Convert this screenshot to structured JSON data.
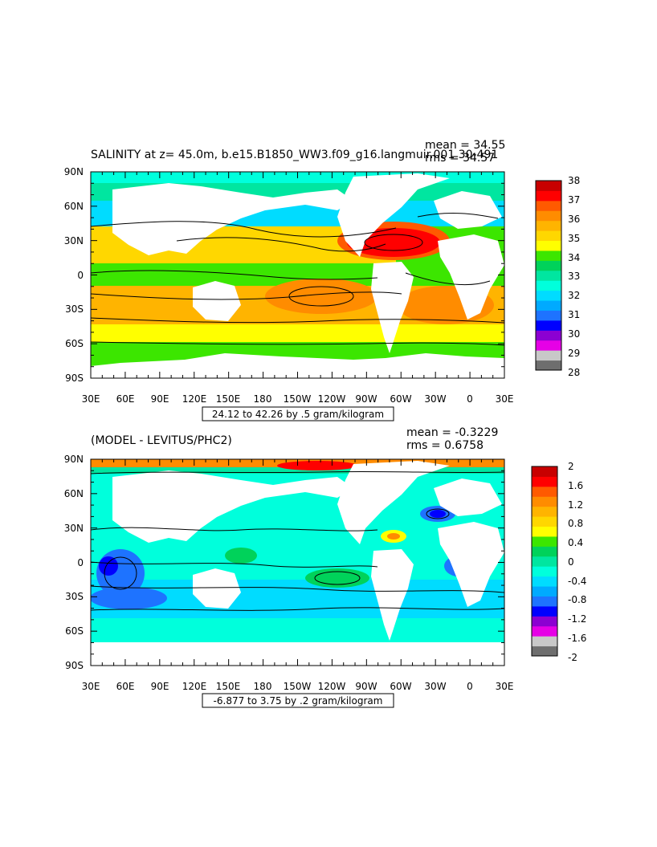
{
  "colors": {
    "palette": [
      "#6e6e6e",
      "#c8c8c8",
      "#e600e6",
      "#8c00d2",
      "#0000ff",
      "#1e73ff",
      "#00aaff",
      "#00dcff",
      "#00ffdc",
      "#00e6a0",
      "#00d25a",
      "#3ce600",
      "#ffff00",
      "#ffd700",
      "#ffb400",
      "#ff8c00",
      "#ff5a00",
      "#ff0000",
      "#c80000"
    ],
    "land": "#ffffff"
  },
  "maps": [
    {
      "title": "SALINITY at z=  45.0m, b.e15.B1850_WW3.f09_g16.langmuir.001 30-491",
      "mean_text": "mean = 34.55",
      "rms_text": "rms = 34.57",
      "contour_info": "24.12 to 42.26 by .5 gram/kilogram",
      "colorbar_labels": [
        "38",
        "37",
        "36",
        "35",
        "34",
        "33",
        "32",
        "31",
        "30",
        "29",
        "28"
      ],
      "lon_labels": [
        "30E",
        "60E",
        "90E",
        "120E",
        "150E",
        "180",
        "150W",
        "120W",
        "90W",
        "60W",
        "30W",
        "0",
        "30E"
      ],
      "lat_labels": [
        "90N",
        "60N",
        "30N",
        "0",
        "30S",
        "60S",
        "90S"
      ]
    },
    {
      "title": "(MODEL - LEVITUS/PHC2)",
      "mean_text": "mean = -0.3229",
      "rms_text": "rms = 0.6758",
      "contour_info": "-6.877 to 3.75 by .2 gram/kilogram",
      "colorbar_labels": [
        "2",
        "1.6",
        "1.2",
        "0.8",
        "0.4",
        "0",
        "-0.4",
        "-0.8",
        "-1.2",
        "-1.6",
        "-2"
      ],
      "lon_labels": [
        "30E",
        "60E",
        "90E",
        "120E",
        "150E",
        "180",
        "150W",
        "120W",
        "90W",
        "60W",
        "30W",
        "0",
        "30E"
      ],
      "lat_labels": [
        "90N",
        "60N",
        "30N",
        "0",
        "30S",
        "60S",
        "90S"
      ]
    }
  ]
}
